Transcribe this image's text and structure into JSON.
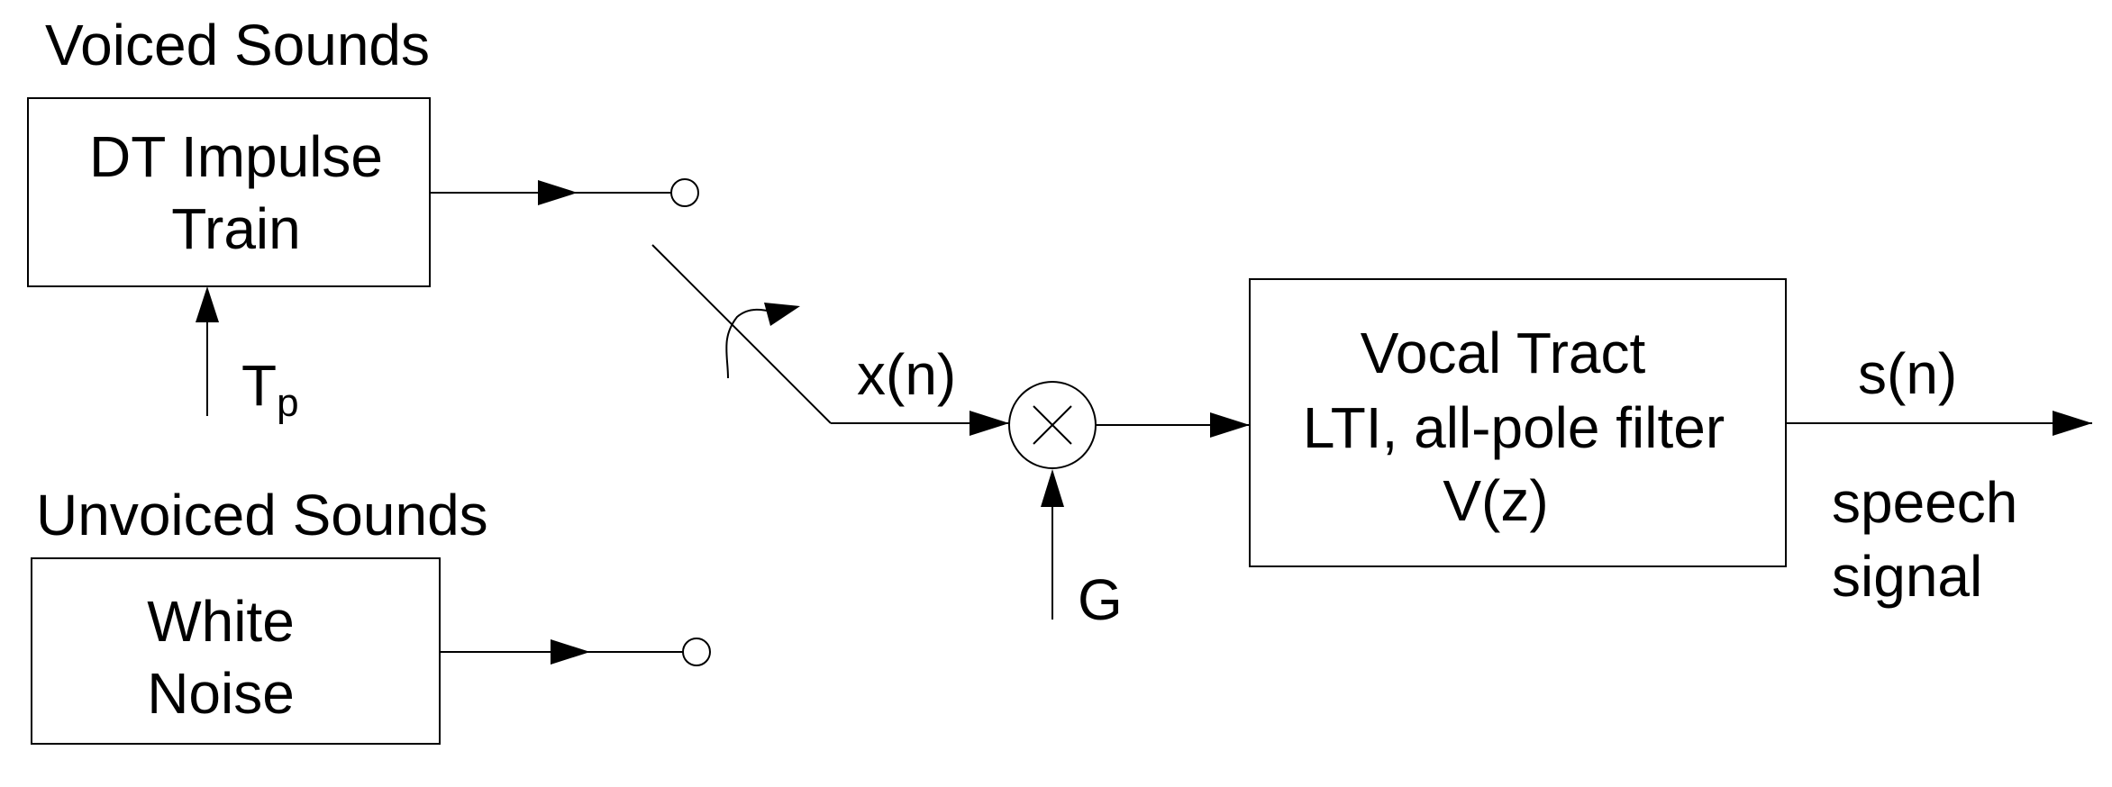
{
  "labels": {
    "voiced_sounds": "Voiced Sounds",
    "unvoiced_sounds": "Unvoiced Sounds",
    "impulse_line1": "DT Impulse",
    "impulse_line2": "Train",
    "noise_line1": "White",
    "noise_line2": "Noise",
    "pitch_period_main": "T",
    "pitch_period_sub": "p",
    "excitation": "x(n)",
    "gain": "G",
    "vocal_line1": "Vocal Tract",
    "vocal_line2": "LTI, all-pole filter",
    "vocal_line3": "V(z)",
    "output": "s(n)",
    "output_desc1": "speech",
    "output_desc2": "signal"
  },
  "colors": {
    "stroke": "#000000",
    "background": "#ffffff"
  }
}
